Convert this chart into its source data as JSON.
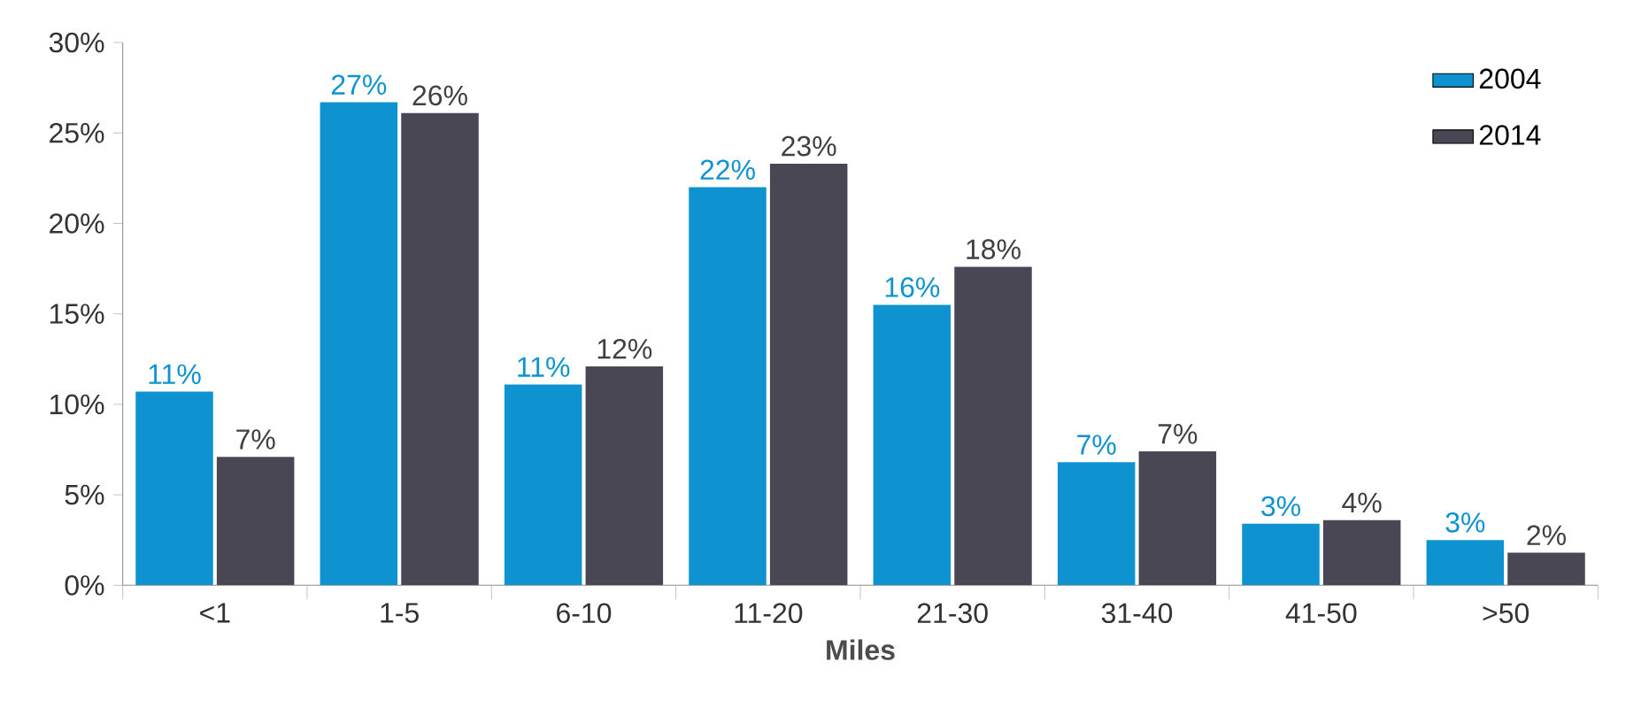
{
  "chart_data": {
    "type": "bar",
    "xlabel": "Miles",
    "categories": [
      "<1",
      "1-5",
      "6-10",
      "11-20",
      "21-30",
      "31-40",
      "41-50",
      ">50"
    ],
    "series": [
      {
        "name": "2004",
        "color": "#0e93d0",
        "values": [
          10.7,
          26.7,
          11.1,
          22.0,
          15.5,
          6.8,
          3.4,
          2.5
        ],
        "value_labels": [
          "11%",
          "27%",
          "11%",
          "22%",
          "16%",
          "7%",
          "3%",
          "3%"
        ]
      },
      {
        "name": "2014",
        "color": "#4a4754",
        "values": [
          7.1,
          26.1,
          12.1,
          23.3,
          17.6,
          7.4,
          3.6,
          1.8
        ],
        "value_labels": [
          "7%",
          "26%",
          "12%",
          "23%",
          "18%",
          "7%",
          "4%",
          "2%"
        ]
      }
    ],
    "ylim": [
      0,
      30
    ],
    "yticks": [
      {
        "value": 0,
        "label": "0%"
      },
      {
        "value": 5,
        "label": "5%"
      },
      {
        "value": 10,
        "label": "10%"
      },
      {
        "value": 15,
        "label": "15%"
      },
      {
        "value": 20,
        "label": "20%"
      },
      {
        "value": 25,
        "label": "25%"
      },
      {
        "value": 30,
        "label": "30%"
      }
    ],
    "grid": false,
    "legend": "top right"
  }
}
